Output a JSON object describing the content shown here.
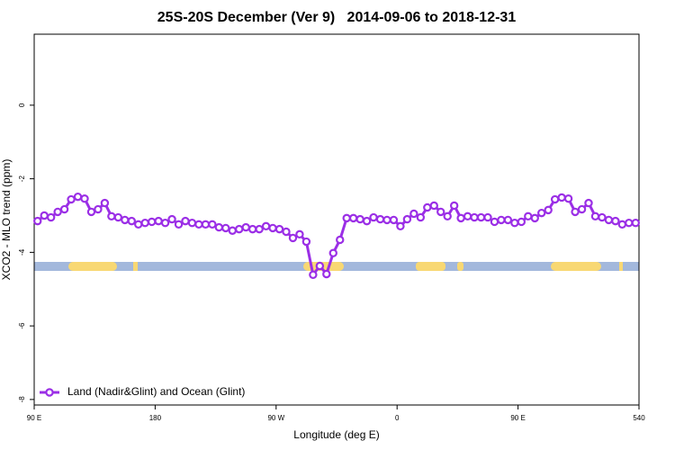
{
  "chart_data": {
    "type": "line",
    "title": "25S-20S December (Ver 9)   2014-09-06 to 2018-12-31",
    "xlabel": "Longitude (deg E)",
    "ylabel": "XCO2 - MLO trend (ppm)",
    "xlim": [
      90,
      540
    ],
    "ylim": [
      -8.15,
      1.93
    ],
    "xticks": [
      {
        "value": 90,
        "label": "90 E"
      },
      180,
      {
        "value": 270,
        "label": "90 W"
      },
      {
        "value": 360,
        "label": "0"
      },
      {
        "value": 450,
        "label": "90 E"
      },
      540
    ],
    "yticks": [
      -8,
      -6,
      -4,
      -2,
      0
    ],
    "legend": "bottom-left",
    "x": [
      92.5,
      97.5,
      102.5,
      107.5,
      112.5,
      117.5,
      122.5,
      127.5,
      132.5,
      137.5,
      142.5,
      147.5,
      152.5,
      157.5,
      162.5,
      167.5,
      172.5,
      177.5,
      182.5,
      187.5,
      192.5,
      197.5,
      202.5,
      207.5,
      212.5,
      217.5,
      222.5,
      227.5,
      232.5,
      237.5,
      242.5,
      247.5,
      252.5,
      257.5,
      262.5,
      267.5,
      272.5,
      277.5,
      282.5,
      287.5,
      292.5,
      297.5,
      302.5,
      307.5,
      312.5,
      317.5,
      322.5,
      327.5,
      332.5,
      337.5,
      342.5,
      347.5,
      352.5,
      357.5,
      362.5,
      367.5,
      372.5,
      377.5,
      382.5,
      387.5,
      392.5,
      397.5,
      402.5,
      407.5,
      412.5,
      417.5,
      422.5,
      427.5,
      432.5,
      437.5,
      442.5,
      447.5,
      452.5,
      457.5,
      462.5,
      467.5,
      472.5,
      477.5,
      482.5,
      487.5,
      492.5,
      497.5,
      502.5,
      507.5,
      512.5,
      517.5,
      522.5,
      527.5,
      532.5,
      537.5
    ],
    "series": [
      {
        "name": "Land (Nadir&Glint) and Ocean (Glint)",
        "color": "#9b2fe6",
        "values": [
          -3.15,
          -3.0,
          -3.05,
          -2.9,
          -2.83,
          -2.56,
          -2.49,
          -2.54,
          -2.9,
          -2.83,
          -2.66,
          -3.02,
          -3.05,
          -3.12,
          -3.15,
          -3.24,
          -3.2,
          -3.17,
          -3.15,
          -3.2,
          -3.1,
          -3.24,
          -3.15,
          -3.2,
          -3.24,
          -3.24,
          -3.24,
          -3.32,
          -3.34,
          -3.41,
          -3.37,
          -3.32,
          -3.37,
          -3.37,
          -3.29,
          -3.34,
          -3.37,
          -3.44,
          -3.61,
          -3.51,
          -3.71,
          -4.61,
          -4.37,
          -4.59,
          -4.02,
          -3.66,
          -3.07,
          -3.07,
          -3.1,
          -3.15,
          -3.05,
          -3.1,
          -3.12,
          -3.12,
          -3.29,
          -3.1,
          -2.95,
          -3.05,
          -2.78,
          -2.73,
          -2.9,
          -3.02,
          -2.73,
          -3.07,
          -3.02,
          -3.05,
          -3.05,
          -3.05,
          -3.17,
          -3.12,
          -3.12,
          -3.2,
          -3.17,
          -3.02,
          -3.07,
          -2.93,
          -2.85,
          -2.56,
          -2.51,
          -2.54,
          -2.9,
          -2.83,
          -2.66,
          -3.02,
          -3.05,
          -3.12,
          -3.15,
          -3.24,
          -3.2,
          -3.2
        ]
      }
    ]
  }
}
